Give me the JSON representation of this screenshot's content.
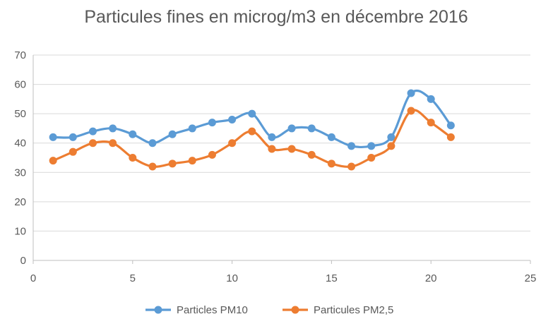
{
  "chart_data": {
    "type": "line",
    "title": "Particules fines en microg/m3 en décembre 2016",
    "xlim": [
      0,
      25
    ],
    "ylim": [
      0,
      70
    ],
    "xticks": [
      0,
      5,
      10,
      15,
      20,
      25
    ],
    "yticks": [
      0,
      10,
      20,
      30,
      40,
      50,
      60,
      70
    ],
    "grid": "horizontal",
    "smooth": true,
    "legend_position": "bottom",
    "x": [
      1,
      2,
      3,
      4,
      5,
      6,
      7,
      8,
      9,
      10,
      11,
      12,
      13,
      14,
      15,
      16,
      17,
      18,
      19,
      20,
      21
    ],
    "series": [
      {
        "name": "Particles PM10",
        "color": "#5b9bd5",
        "values": [
          42,
          42,
          44,
          45,
          43,
          40,
          43,
          45,
          47,
          48,
          50,
          42,
          45,
          45,
          42,
          39,
          39,
          42,
          57,
          55,
          46
        ]
      },
      {
        "name": "Particules PM2,5",
        "color": "#ed7d31",
        "values": [
          34,
          37,
          40,
          40,
          35,
          32,
          33,
          34,
          36,
          40,
          44,
          38,
          38,
          36,
          33,
          32,
          35,
          39,
          51,
          47,
          42
        ]
      }
    ]
  }
}
